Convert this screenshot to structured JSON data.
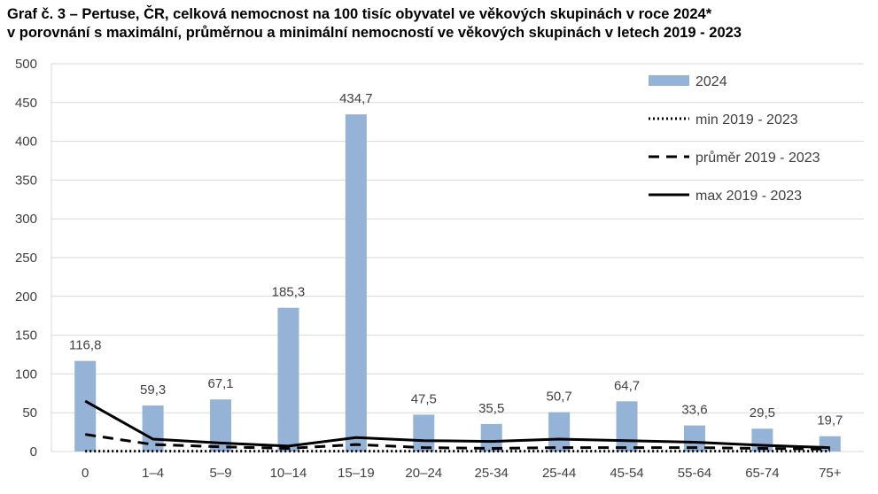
{
  "colors": {
    "bar": "#95b3d7",
    "line": "#000000",
    "grid": "#d9d9d9",
    "text": "#404040"
  },
  "chart_data": {
    "type": "bar",
    "title": "Graf č. 3 – Pertuse, ČR, celková nemocnost na 100 tisíc obyvatel ve věkových skupinách v roce 2024*",
    "subtitle": "v porovnání s maximální, průměrnou a minimální nemocností ve věkových skupinách v  letech 2019 - 2023",
    "categories": [
      "0",
      "1–4",
      "5–9",
      "10–14",
      "15–19",
      "20–24",
      "25-34",
      "25-44",
      "45-54",
      "55-64",
      "65-74",
      "75+"
    ],
    "ylim": [
      0,
      500
    ],
    "yticks": [
      "0",
      "50",
      "100",
      "150",
      "200",
      "250",
      "300",
      "350",
      "400",
      "450",
      "500"
    ],
    "grid": true,
    "legend_position": "top-right",
    "series": [
      {
        "name": "2024",
        "kind": "bar",
        "values": [
          116.8,
          59.3,
          67.1,
          185.3,
          434.7,
          47.5,
          35.5,
          50.7,
          64.7,
          33.6,
          29.5,
          19.7
        ],
        "labels": [
          "116,8",
          "59,3",
          "67,1",
          "185,3",
          "434,7",
          "47,5",
          "35,5",
          "50,7",
          "64,7",
          "33,6",
          "29,5",
          "19,7"
        ]
      },
      {
        "name": "min 2019 - 2023",
        "kind": "line",
        "dash": "dotted",
        "values": [
          0.5,
          0.5,
          0.5,
          0.5,
          0.5,
          0.5,
          0.5,
          0.5,
          0.5,
          0.5,
          0.5,
          0.5
        ]
      },
      {
        "name": "průměr 2019 - 2023",
        "kind": "line",
        "dash": "dashed",
        "values": [
          22,
          9,
          6,
          4,
          9,
          5,
          4,
          5,
          5,
          5,
          4,
          3
        ]
      },
      {
        "name": "max 2019 - 2023",
        "kind": "line",
        "dash": "solid",
        "values": [
          65,
          16,
          11,
          7,
          18,
          14,
          13,
          16,
          14,
          12,
          8,
          5
        ]
      }
    ]
  }
}
